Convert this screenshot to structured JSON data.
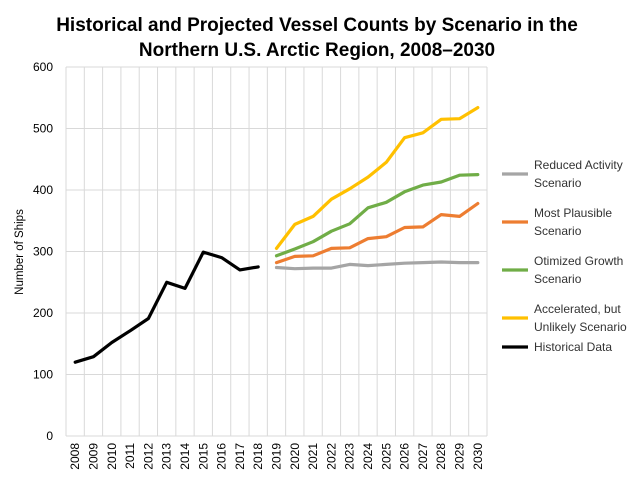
{
  "chart_data": {
    "type": "line",
    "title_lines": [
      "Historical and Projected Vessel Counts by Scenario in the",
      "Northern U.S. Arctic Region, 2008–2030"
    ],
    "xlabel": "",
    "ylabel": "Number of Ships",
    "ylim": [
      0,
      600
    ],
    "y_ticks": [
      0,
      100,
      200,
      300,
      400,
      500,
      600
    ],
    "categories": [
      "2008",
      "2009",
      "2010",
      "2011",
      "2012",
      "2013",
      "2014",
      "2015",
      "2016",
      "2017",
      "2018",
      "2019",
      "2020",
      "2021",
      "2022",
      "2023",
      "2024",
      "2025",
      "2026",
      "2027",
      "2028",
      "2029",
      "2030"
    ],
    "grid": true,
    "legend_position": "right",
    "series": [
      {
        "name_lines": [
          "Reduced Activity",
          "Scenario"
        ],
        "color": "#a5a5a5",
        "x": [
          "2019",
          "2020",
          "2021",
          "2022",
          "2023",
          "2024",
          "2025",
          "2026",
          "2027",
          "2028",
          "2029",
          "2030"
        ],
        "values": [
          274,
          272,
          273,
          273,
          279,
          277,
          279,
          281,
          282,
          283,
          282,
          282
        ]
      },
      {
        "name_lines": [
          "Most Plausible",
          "Scenario"
        ],
        "color": "#ed7d31",
        "x": [
          "2019",
          "2020",
          "2021",
          "2022",
          "2023",
          "2024",
          "2025",
          "2026",
          "2027",
          "2028",
          "2029",
          "2030"
        ],
        "values": [
          282,
          292,
          293,
          305,
          306,
          321,
          324,
          339,
          340,
          360,
          357,
          378
        ]
      },
      {
        "name_lines": [
          "Otimized Growth",
          "Scenario"
        ],
        "color": "#70ad47",
        "x": [
          "2019",
          "2020",
          "2021",
          "2022",
          "2023",
          "2024",
          "2025",
          "2026",
          "2027",
          "2028",
          "2029",
          "2030"
        ],
        "values": [
          293,
          304,
          316,
          333,
          345,
          371,
          380,
          397,
          408,
          413,
          424,
          425
        ]
      },
      {
        "name_lines": [
          "Accelerated, but",
          "Unlikely Scenario"
        ],
        "color": "#ffc000",
        "x": [
          "2019",
          "2020",
          "2021",
          "2022",
          "2023",
          "2024",
          "2025",
          "2026",
          "2027",
          "2028",
          "2029",
          "2030"
        ],
        "values": [
          305,
          344,
          357,
          385,
          402,
          421,
          445,
          485,
          493,
          515,
          516,
          534
        ]
      },
      {
        "name_lines": [
          "Historical Data"
        ],
        "color": "#000000",
        "x": [
          "2008",
          "2009",
          "2010",
          "2011",
          "2012",
          "2013",
          "2014",
          "2015",
          "2016",
          "2017",
          "2018"
        ],
        "values": [
          120,
          129,
          152,
          171,
          191,
          250,
          240,
          299,
          290,
          270,
          275
        ]
      }
    ]
  }
}
